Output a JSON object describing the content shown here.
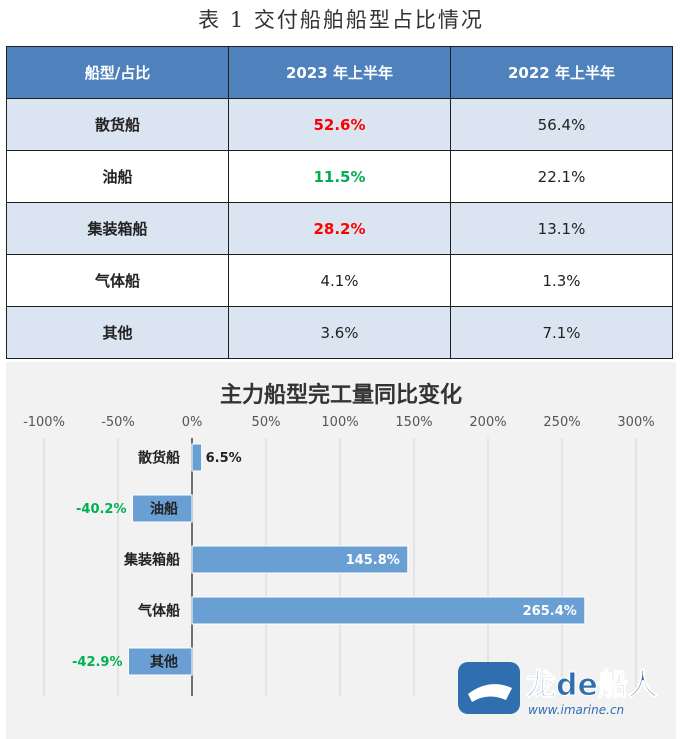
{
  "table": {
    "title": "表 1 交付船舶船型占比情况",
    "headers": [
      "船型/占比",
      "2023 年上半年",
      "2022 年上半年"
    ],
    "rows": [
      {
        "type": "散货船",
        "y2023": "52.6%",
        "y2022": "56.4%",
        "highlight": "red"
      },
      {
        "type": "油船",
        "y2023": "11.5%",
        "y2022": "22.1%",
        "highlight": "green"
      },
      {
        "type": "集装箱船",
        "y2023": "28.2%",
        "y2022": "13.1%",
        "highlight": "red"
      },
      {
        "type": "气体船",
        "y2023": "4.1%",
        "y2022": "1.3%",
        "highlight": ""
      },
      {
        "type": "其他",
        "y2023": "3.6%",
        "y2022": "7.1%",
        "highlight": ""
      }
    ]
  },
  "chart_data": {
    "type": "bar",
    "orientation": "horizontal",
    "title": "主力船型完工量同比变化",
    "categories": [
      "散货船",
      "油船",
      "集装箱船",
      "气体船",
      "其他"
    ],
    "values": [
      6.5,
      -40.2,
      145.8,
      265.4,
      -42.9
    ],
    "value_labels": [
      "6.5%",
      "-40.2%",
      "145.8%",
      "265.4%",
      "-42.9%"
    ],
    "xlim": [
      -100,
      300
    ],
    "xticks": [
      -100,
      -50,
      0,
      50,
      100,
      150,
      200,
      250,
      300
    ],
    "xtick_labels": [
      "-100%",
      "-50%",
      "0%",
      "50%",
      "100%",
      "150%",
      "200%",
      "250%",
      "300%"
    ],
    "axis_position": "top",
    "grid": true,
    "bar_color": "#6a9fd4",
    "negative_label_color": "#00b050"
  },
  "watermark": {
    "brand": "龙de船人",
    "url": "www.imarine.cn"
  },
  "colors": {
    "header_bg": "#4f81bd",
    "band_bg": "#dbe5f1",
    "red": "#ff0000",
    "green": "#00b050"
  }
}
